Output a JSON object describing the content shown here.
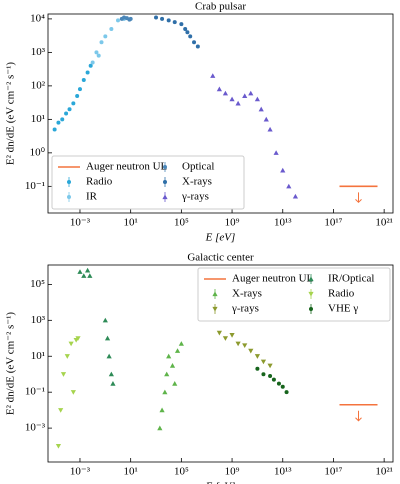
{
  "chart_data": [
    {
      "type": "scatter",
      "title": "Crab pulsar",
      "xlabel": "E [eV]",
      "ylabel": "E² dn/dE (eV cm⁻² s⁻¹)",
      "xscale": "log",
      "yscale": "log",
      "xlim": [
        3e-06,
        5e+21
      ],
      "ylim": [
        0.016,
        14000
      ],
      "xticks": [
        {
          "value": 0.001,
          "label": "10⁻³"
        },
        {
          "value": 10,
          "label": "10¹"
        },
        {
          "value": 100000,
          "label": "10⁵"
        },
        {
          "value": 1000000000.0,
          "label": "10⁹"
        },
        {
          "value": 10000000000000.0,
          "label": "10¹³"
        },
        {
          "value": 1e+17,
          "label": "10¹⁷"
        },
        {
          "value": 1e+21,
          "label": "10²¹"
        }
      ],
      "yticks": [
        {
          "value": 0.1,
          "label": "10⁻¹"
        },
        {
          "value": 1,
          "label": "10⁰"
        },
        {
          "value": 10,
          "label": "10¹"
        },
        {
          "value": 100,
          "label": "10²"
        },
        {
          "value": 1000,
          "label": "10³"
        },
        {
          "value": 10000,
          "label": "10⁴"
        }
      ],
      "legend": "lower left",
      "legend_columns": 2,
      "series": [
        {
          "name": "Auger neutron UL",
          "color": "#f4733d",
          "marker": "upper-limit",
          "x": [
            3e+17,
            3e+20
          ],
          "values": [
            0.1,
            0.1
          ]
        },
        {
          "name": "Radio",
          "color": "#2aa7d8",
          "marker": "circle",
          "x": [
            1e-05,
            2e-05,
            4e-05,
            8e-05,
            0.00015,
            0.0003,
            0.0006,
            0.001,
            0.002,
            0.004,
            0.007
          ],
          "values": [
            5,
            8,
            10,
            15,
            20,
            30,
            50,
            80,
            150,
            250,
            400
          ]
        },
        {
          "name": "IR",
          "color": "#7cc8ea",
          "marker": "circle",
          "x": [
            0.01,
            0.02,
            0.03,
            0.05,
            0.1,
            0.3,
            1,
            3
          ],
          "values": [
            500,
            1000,
            800,
            2000,
            3000,
            5000,
            9000,
            10000
          ]
        },
        {
          "name": "Optical",
          "color": "#4a86b8",
          "marker": "circle",
          "x": [
            2,
            3,
            5,
            8,
            10
          ],
          "values": [
            10000,
            11000,
            10500,
            9500,
            10000
          ]
        },
        {
          "name": "X-rays",
          "color": "#2f6fa8",
          "marker": "circle",
          "x": [
            1000,
            3000,
            10000,
            30000,
            100000,
            200000,
            300000,
            500000,
            1000000,
            2000000
          ],
          "values": [
            11000,
            10000,
            9000,
            8000,
            7000,
            5000,
            4000,
            3000,
            2000,
            1500
          ]
        },
        {
          "name": "γ-rays",
          "color": "#6a5acd",
          "marker": "triangle-up",
          "x": [
            30000000.0,
            100000000.0,
            300000000.0,
            1000000000.0,
            3000000000.0,
            10000000000.0,
            30000000000.0,
            100000000000.0,
            200000000000.0,
            500000000000.0,
            1000000000000.0,
            3000000000000.0,
            10000000000000.0,
            30000000000000.0,
            100000000000000.0
          ],
          "values": [
            200,
            80,
            60,
            40,
            30,
            50,
            60,
            40,
            20,
            10,
            5,
            1,
            0.3,
            0.1,
            0.05
          ]
        }
      ]
    },
    {
      "type": "scatter",
      "title": "Galactic center",
      "xlabel": "E [eV]",
      "ylabel": "E² dn/dE (eV cm⁻² s⁻¹)",
      "xscale": "log",
      "yscale": "log",
      "xlim": [
        3e-06,
        5e+21
      ],
      "ylim": [
        1.3e-05,
        1200000
      ],
      "xticks": [
        {
          "value": 0.001,
          "label": "10⁻³"
        },
        {
          "value": 10,
          "label": "10¹"
        },
        {
          "value": 100000,
          "label": "10⁵"
        },
        {
          "value": 1000000000.0,
          "label": "10⁹"
        },
        {
          "value": 10000000000000.0,
          "label": "10¹³"
        },
        {
          "value": 1e+17,
          "label": "10¹⁷"
        },
        {
          "value": 1e+21,
          "label": "10²¹"
        }
      ],
      "yticks": [
        {
          "value": 0.001,
          "label": "10⁻³"
        },
        {
          "value": 0.1,
          "label": "10⁻¹"
        },
        {
          "value": 10,
          "label": "10¹"
        },
        {
          "value": 1000,
          "label": "10³"
        },
        {
          "value": 100000,
          "label": "10⁵"
        }
      ],
      "legend": "upper right",
      "legend_columns": 2,
      "series": [
        {
          "name": "Auger neutron UL",
          "color": "#f4733d",
          "marker": "upper-limit",
          "x": [
            3e+17,
            3e+20
          ],
          "values": [
            0.02,
            0.02
          ]
        },
        {
          "name": "X-rays",
          "color": "#5fb44a",
          "marker": "triangle-up",
          "x": [
            2000,
            3000,
            5000,
            7000,
            10000,
            20000,
            30000,
            50000,
            100000
          ],
          "values": [
            0.001,
            0.01,
            0.1,
            1,
            10,
            3,
            0.3,
            20,
            50
          ]
        },
        {
          "name": "γ-rays",
          "color": "#8c9a2e",
          "marker": "triangle-down",
          "x": [
            100000000.0,
            300000000.0,
            1000000000.0,
            3000000000.0,
            10000000000.0,
            30000000000.0,
            100000000000.0,
            300000000000.0,
            1000000000000.0
          ],
          "values": [
            200,
            100,
            150,
            50,
            40,
            20,
            10,
            5,
            3
          ]
        },
        {
          "name": "IR/Optical",
          "color": "#2e8b57",
          "marker": "triangle-up",
          "x": [
            0.001,
            0.002,
            0.004,
            0.006,
            0.1,
            0.15,
            0.2,
            0.3,
            0.4
          ],
          "values": [
            500000,
            300000,
            600000,
            300000,
            1000,
            100,
            10,
            1,
            0.3
          ]
        },
        {
          "name": "Radio",
          "color": "#a6d44e",
          "marker": "triangle-down",
          "x": [
            2e-05,
            3e-05,
            5e-05,
            0.0001,
            0.0002,
            0.0003,
            0.0005,
            0.0007
          ],
          "values": [
            0.0001,
            0.01,
            1,
            10,
            50,
            0.1,
            80,
            100
          ]
        },
        {
          "name": "VHE γ",
          "color": "#16641c",
          "marker": "circle",
          "x": [
            100000000000.0,
            300000000000.0,
            1000000000000.0,
            2000000000000.0,
            5000000000000.0,
            10000000000000.0,
            20000000000000.0
          ],
          "values": [
            2,
            1,
            0.8,
            0.5,
            0.3,
            0.2,
            0.1
          ]
        }
      ]
    }
  ]
}
